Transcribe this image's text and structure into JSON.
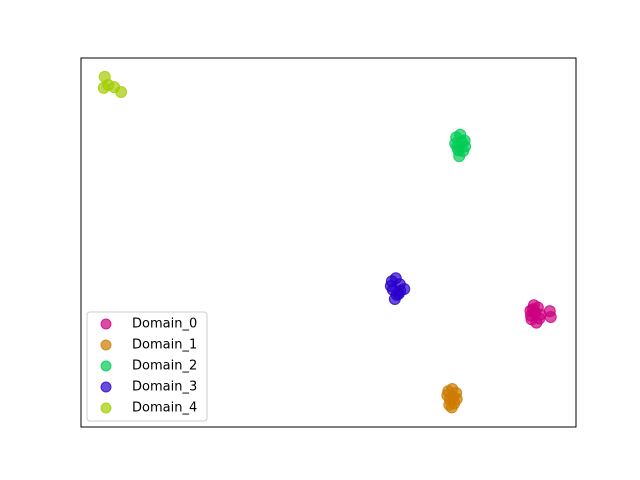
{
  "chart_data": {
    "type": "scatter",
    "xlim": [
      0,
      100
    ],
    "ylim": [
      0,
      100
    ],
    "legend": "lower left",
    "series": [
      {
        "name": "Domain_0",
        "color": "#cc0080",
        "x": [
          90.8,
          91.5,
          92.3,
          92.8,
          91.0,
          92.0,
          91.7,
          90.9,
          92.6,
          91.3,
          94.7,
          94.9
        ],
        "values": [
          31.5,
          33.0,
          32.4,
          30.5,
          29.2,
          28.3,
          30.9,
          30.2,
          29.4,
          31.9,
          31.4,
          29.8
        ]
      },
      {
        "name": "Domain_1",
        "color": "#cc7a00",
        "x": [
          74.2,
          75.0,
          75.8,
          74.5,
          75.4,
          74.0,
          75.9,
          74.9,
          75.2,
          74.4
        ],
        "values": [
          9.7,
          10.3,
          9.2,
          7.5,
          6.4,
          8.6,
          7.6,
          5.3,
          8.1,
          6.0
        ]
      },
      {
        "name": "Domain_2",
        "color": "#00cc52",
        "x": [
          75.8,
          76.6,
          77.5,
          76.0,
          77.2,
          75.6,
          77.6,
          76.4,
          76.9,
          76.2
        ],
        "values": [
          78.5,
          79.2,
          77.6,
          75.9,
          74.8,
          76.8,
          76.0,
          73.4,
          77.3,
          75.0
        ]
      },
      {
        "name": "Domain_3",
        "color": "#2900cc",
        "x": [
          62.8,
          63.6,
          64.4,
          63.0,
          64.2,
          62.6,
          64.5,
          63.4,
          65.3,
          63.8
        ],
        "values": [
          39.5,
          40.3,
          38.7,
          37.2,
          36.1,
          38.2,
          36.9,
          34.7,
          37.4,
          35.8
        ]
      },
      {
        "name": "Domain_4",
        "color": "#a3cc00",
        "x": [
          4.8,
          4.6,
          6.7,
          8.1,
          5.5
        ],
        "values": [
          94.9,
          91.9,
          92.1,
          90.8,
          92.7
        ]
      }
    ]
  }
}
